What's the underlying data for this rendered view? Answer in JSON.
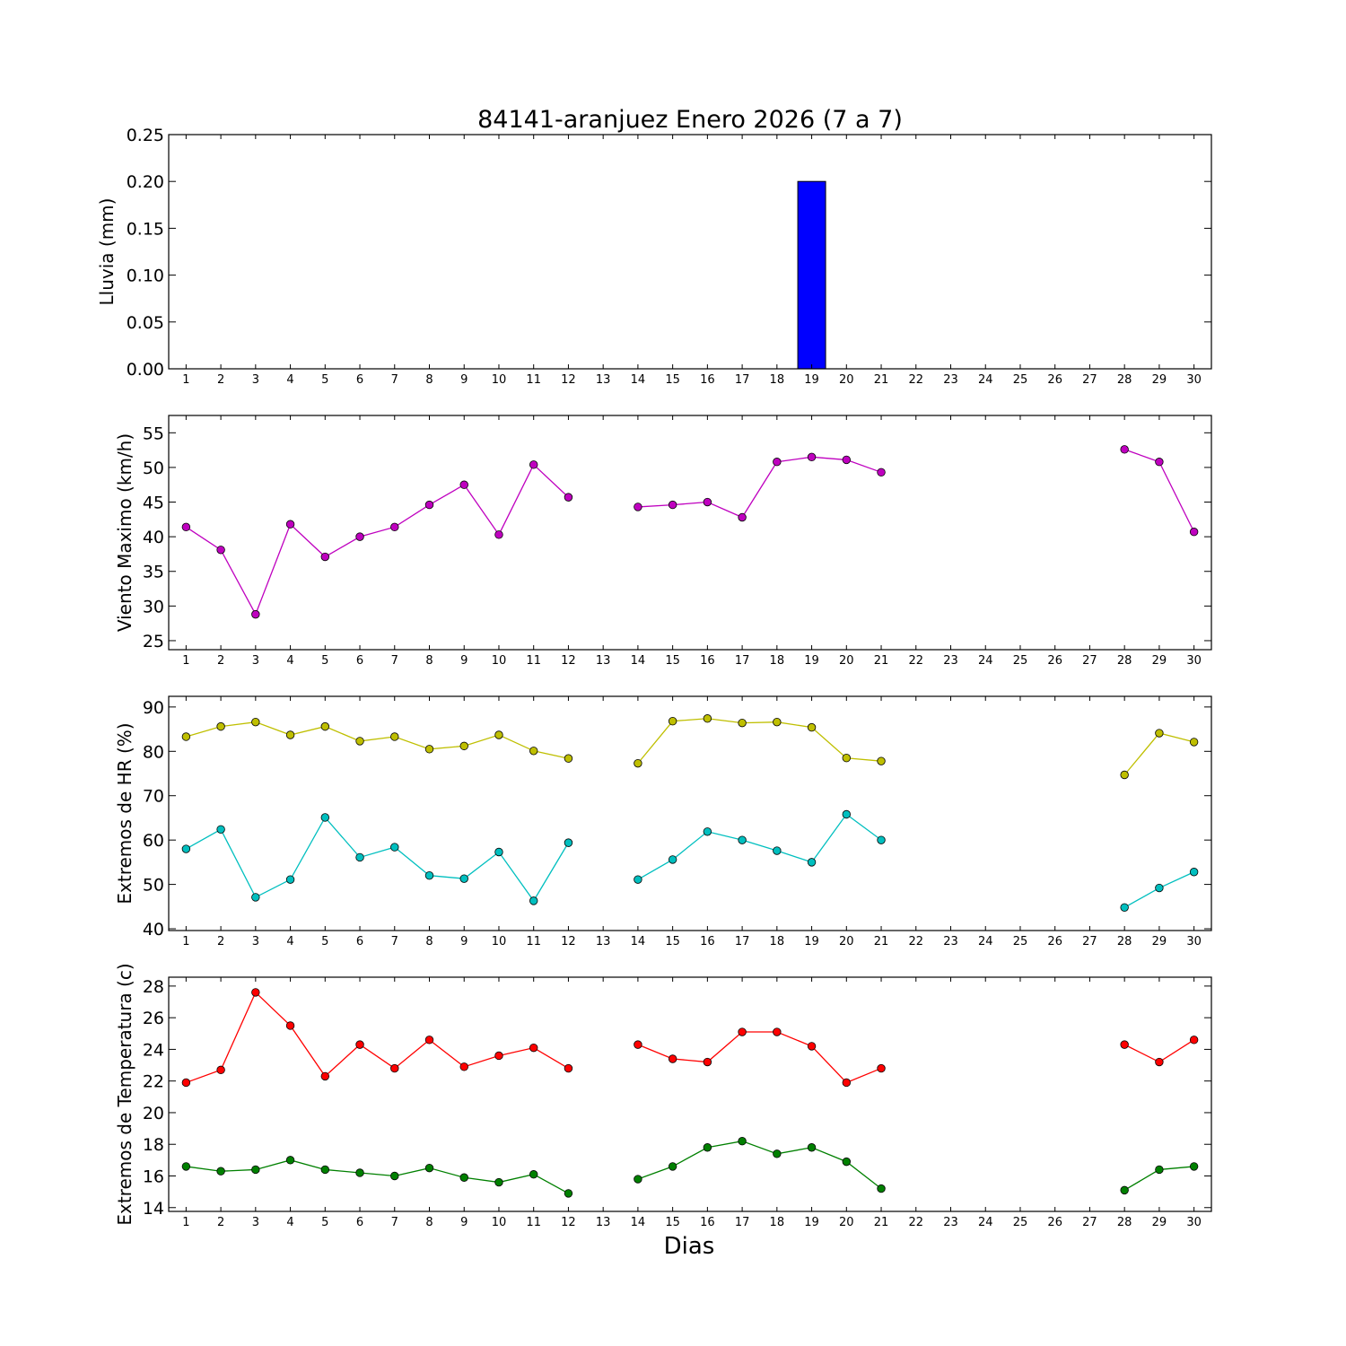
{
  "figure": {
    "title": "84141-aranjuez Enero 2026  (7 a 7)",
    "xlabel": "Dias"
  },
  "chart_data": [
    {
      "type": "bar",
      "ylabel": "Lluvia (mm)",
      "ylim": [
        0,
        0.25
      ],
      "yticks": [
        0.0,
        0.05,
        0.1,
        0.15,
        0.2,
        0.25
      ],
      "ytick_decimals": 2,
      "x": [
        1,
        2,
        3,
        4,
        5,
        6,
        7,
        8,
        9,
        10,
        11,
        12,
        13,
        14,
        15,
        16,
        17,
        18,
        19,
        20,
        21,
        22,
        23,
        24,
        25,
        26,
        27,
        28,
        29,
        30
      ],
      "series": [
        {
          "color": "#0000ff",
          "values": [
            0,
            0,
            0,
            0,
            0,
            0,
            0,
            0,
            0,
            0,
            0,
            0,
            0,
            0,
            0,
            0,
            0,
            0,
            0.2,
            0,
            0,
            0,
            0,
            0,
            0,
            0,
            0,
            0,
            0,
            0
          ]
        }
      ]
    },
    {
      "type": "line",
      "ylabel": "Viento Maximo (km/h)",
      "ylim": [
        23.7,
        57.5
      ],
      "yticks": [
        25,
        30,
        35,
        40,
        45,
        50,
        55
      ],
      "ytick_decimals": 0,
      "x": [
        1,
        2,
        3,
        4,
        5,
        6,
        7,
        8,
        9,
        10,
        11,
        12,
        13,
        14,
        15,
        16,
        17,
        18,
        19,
        20,
        21,
        22,
        23,
        24,
        25,
        26,
        27,
        28,
        29,
        30
      ],
      "series": [
        {
          "color": "#bf00bf",
          "values": [
            41.4,
            38.1,
            28.8,
            41.8,
            37.1,
            40.0,
            41.4,
            44.6,
            47.5,
            40.3,
            50.4,
            45.7,
            null,
            44.3,
            44.6,
            45.0,
            42.8,
            50.8,
            51.5,
            51.1,
            49.3,
            null,
            null,
            null,
            null,
            null,
            null,
            52.6,
            50.8,
            40.7
          ]
        }
      ]
    },
    {
      "type": "line",
      "ylabel": "Extremos de HR (%)",
      "ylim": [
        39.6,
        92.4
      ],
      "yticks": [
        40,
        50,
        60,
        70,
        80,
        90
      ],
      "ytick_decimals": 0,
      "x": [
        1,
        2,
        3,
        4,
        5,
        6,
        7,
        8,
        9,
        10,
        11,
        12,
        13,
        14,
        15,
        16,
        17,
        18,
        19,
        20,
        21,
        22,
        23,
        24,
        25,
        26,
        27,
        28,
        29,
        30
      ],
      "series": [
        {
          "color": "#bfbf00",
          "values": [
            83.3,
            85.6,
            86.6,
            83.7,
            85.6,
            82.3,
            83.3,
            80.5,
            81.2,
            83.7,
            80.1,
            78.4,
            null,
            77.3,
            86.8,
            87.4,
            86.4,
            86.6,
            85.4,
            78.5,
            77.8,
            null,
            null,
            null,
            null,
            null,
            null,
            74.7,
            84.1,
            82.1
          ]
        },
        {
          "color": "#00bfbf",
          "values": [
            58.0,
            62.4,
            47.1,
            51.1,
            65.1,
            56.1,
            58.4,
            52.0,
            51.3,
            57.3,
            46.3,
            59.4,
            null,
            51.1,
            55.6,
            61.9,
            60.0,
            57.6,
            55.0,
            65.8,
            60.0,
            null,
            null,
            null,
            null,
            null,
            null,
            44.8,
            49.2,
            52.8
          ]
        }
      ]
    },
    {
      "type": "line",
      "ylabel": "Extremos de Temperatura (c)",
      "ylim": [
        13.76,
        28.56
      ],
      "yticks": [
        14,
        16,
        18,
        20,
        22,
        24,
        26,
        28
      ],
      "ytick_decimals": 0,
      "x": [
        1,
        2,
        3,
        4,
        5,
        6,
        7,
        8,
        9,
        10,
        11,
        12,
        13,
        14,
        15,
        16,
        17,
        18,
        19,
        20,
        21,
        22,
        23,
        24,
        25,
        26,
        27,
        28,
        29,
        30
      ],
      "series": [
        {
          "color": "#ff0000",
          "values": [
            21.9,
            22.7,
            27.6,
            25.5,
            22.3,
            24.3,
            22.8,
            24.6,
            22.9,
            23.6,
            24.1,
            22.8,
            null,
            24.3,
            23.4,
            23.2,
            25.1,
            25.1,
            24.2,
            21.9,
            22.8,
            null,
            null,
            null,
            null,
            null,
            null,
            24.3,
            23.2,
            24.6
          ]
        },
        {
          "color": "#008000",
          "values": [
            16.6,
            16.3,
            16.4,
            17.0,
            16.4,
            16.2,
            16.0,
            16.5,
            15.9,
            15.6,
            16.1,
            14.9,
            null,
            15.8,
            16.6,
            17.8,
            18.2,
            17.4,
            17.8,
            16.9,
            15.2,
            null,
            null,
            null,
            null,
            null,
            null,
            15.1,
            16.4,
            16.6
          ]
        }
      ]
    }
  ]
}
